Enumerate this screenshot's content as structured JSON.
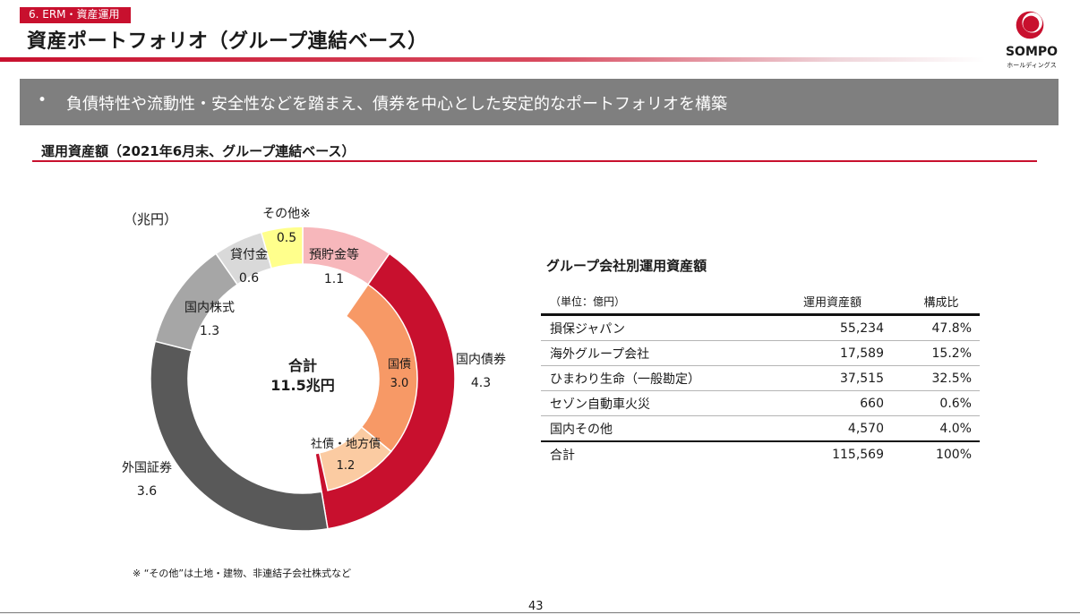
{
  "header": {
    "section_tag": "6. ERM・資産運用",
    "title": "資産ポートフォリオ（グループ連結ベース）",
    "logo_name": "SOMPO",
    "logo_sub": "ホールディングス"
  },
  "banner": {
    "bullet": "•",
    "text": "負債特性や流動性・安全性などを踏まえ、債券を中心とした安定的なポートフォリオを構築"
  },
  "section": {
    "title": "運用資産額（2021年6月末、グループ連結ベース）"
  },
  "chart_data": {
    "type": "pie",
    "subtype": "nested-donut",
    "unit_label": "（兆円）",
    "center_label": [
      "合計",
      "11.5兆円"
    ],
    "outer": [
      {
        "label": "預貯金等",
        "value": 1.1,
        "value_label": "1.1",
        "color": "#f7b7bb"
      },
      {
        "label": "国内債券",
        "value": 4.3,
        "value_label": "4.3",
        "color": "#c8102e"
      },
      {
        "label": "外国証券",
        "value": 3.6,
        "value_label": "3.6",
        "color": "#595959"
      },
      {
        "label": "国内株式",
        "value": 1.3,
        "value_label": "1.3",
        "color": "#a6a6a6"
      },
      {
        "label": "貸付金",
        "value": 0.6,
        "value_label": "0.6",
        "color": "#d9d9d9"
      },
      {
        "label": "その他※",
        "value": 0.5,
        "value_label": "0.5",
        "color": "#ffff8c"
      }
    ],
    "inner": [
      {
        "label": "国債",
        "value": 3.0,
        "value_label": "3.0",
        "color": "#f79966"
      },
      {
        "label": "社債・地方債",
        "value": 1.2,
        "value_label": "1.2",
        "color": "#fbcba2"
      }
    ],
    "footnote": "※ “その他”は土地・建物、非連結子会社株式など"
  },
  "table": {
    "title": "グループ会社別運用資産額",
    "header": [
      "（単位：億円）",
      "運用資産額",
      "構成比"
    ],
    "rows": [
      [
        "損保ジャパン",
        "55,234",
        "47.8%"
      ],
      [
        "海外グループ会社",
        "17,589",
        "15.2%"
      ],
      [
        "ひまわり生命（一般勘定）",
        "37,515",
        "32.5%"
      ],
      [
        "セゾン自動車火災",
        "660",
        "0.6%"
      ],
      [
        "国内その他",
        "4,570",
        "4.0%"
      ]
    ],
    "total": [
      "合計",
      "115,569",
      "100%"
    ]
  },
  "footer": {
    "page_number": "43"
  }
}
